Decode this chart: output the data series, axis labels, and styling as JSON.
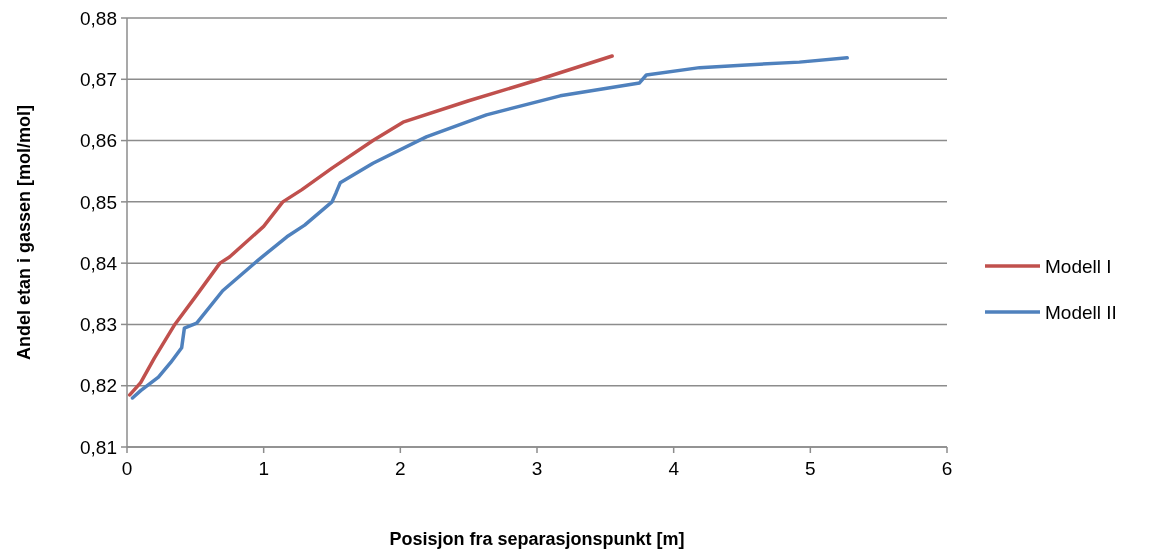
{
  "chart_data": {
    "type": "line",
    "xlabel": "Posisjon fra separasjonspunkt [m]",
    "ylabel": "Andel etan i gassen [mol/mol]",
    "xlim": [
      0,
      6
    ],
    "xticks": [
      0,
      1,
      2,
      3,
      4,
      5,
      6
    ],
    "ylim": [
      0.81,
      0.88
    ],
    "yticks": [
      {
        "value": 0.81,
        "label": "0,81"
      },
      {
        "value": 0.82,
        "label": "0,82"
      },
      {
        "value": 0.83,
        "label": "0,83"
      },
      {
        "value": 0.84,
        "label": "0,84"
      },
      {
        "value": 0.85,
        "label": "0,85"
      },
      {
        "value": 0.86,
        "label": "0,86"
      },
      {
        "value": 0.87,
        "label": "0,87"
      },
      {
        "value": 0.88,
        "label": "0,88"
      }
    ],
    "grid": "y",
    "legend": "right",
    "marker": "none",
    "line_style": "solid",
    "series": [
      {
        "name": "Modell I",
        "color": "#c0504d",
        "x": [
          0.02,
          0.1,
          0.2,
          0.35,
          0.5,
          0.68,
          0.75,
          1.0,
          1.14,
          1.28,
          1.5,
          1.8,
          2.02,
          2.5,
          3.02,
          3.55
        ],
        "values": [
          0.8185,
          0.8205,
          0.8245,
          0.83,
          0.8345,
          0.84,
          0.841,
          0.846,
          0.85,
          0.852,
          0.8555,
          0.86,
          0.863,
          0.8665,
          0.87,
          0.8738
        ]
      },
      {
        "name": "Modell II",
        "color": "#4f81bd",
        "x": [
          0.04,
          0.1,
          0.23,
          0.32,
          0.4,
          0.42,
          0.51,
          0.7,
          0.96,
          1.17,
          1.3,
          1.5,
          1.53,
          1.56,
          1.8,
          2.19,
          2.63,
          3.17,
          3.5,
          3.75,
          3.8,
          4.19,
          4.5,
          4.92,
          5.27
        ],
        "values": [
          0.818,
          0.8192,
          0.8214,
          0.8238,
          0.8262,
          0.8294,
          0.8302,
          0.8355,
          0.8405,
          0.8443,
          0.8462,
          0.85,
          0.8515,
          0.8531,
          0.8563,
          0.8606,
          0.8642,
          0.8673,
          0.8685,
          0.8694,
          0.8707,
          0.8719,
          0.8723,
          0.8728,
          0.8735
        ]
      }
    ]
  }
}
